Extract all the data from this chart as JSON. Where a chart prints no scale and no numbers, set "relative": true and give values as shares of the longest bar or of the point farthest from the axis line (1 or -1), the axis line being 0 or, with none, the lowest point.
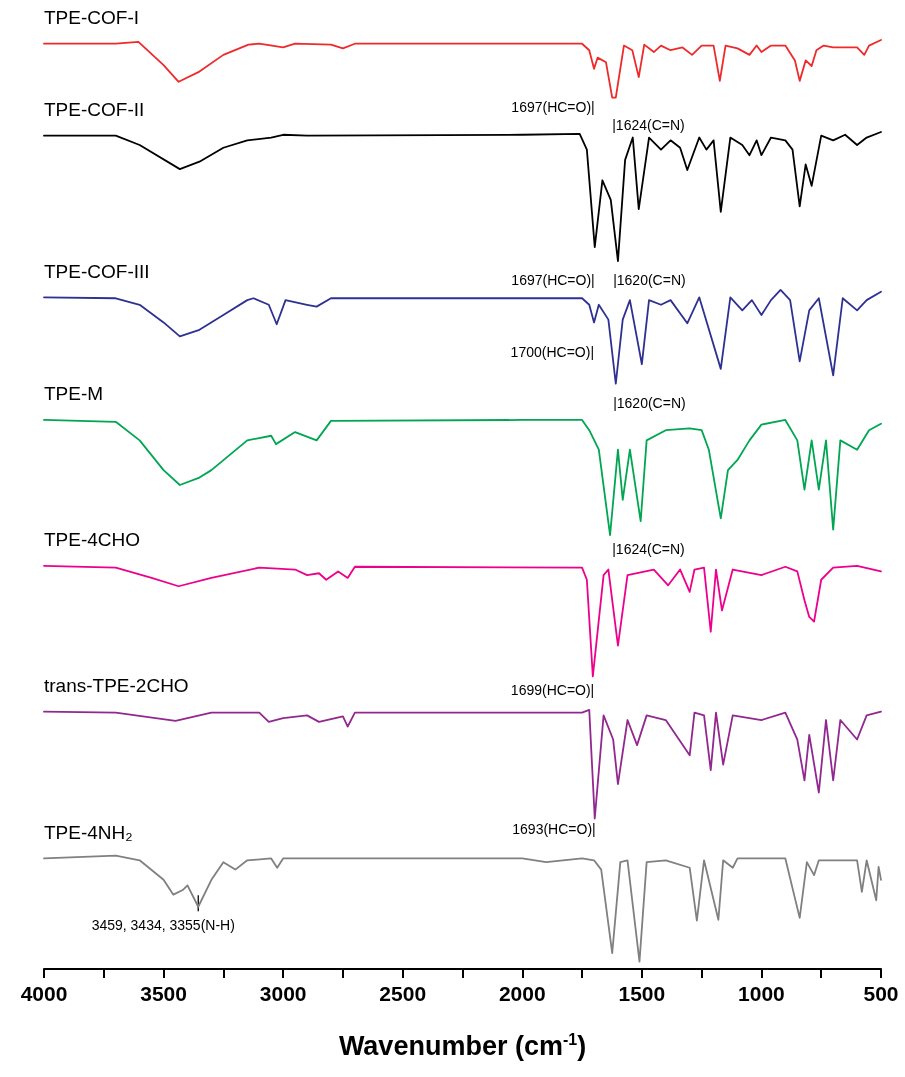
{
  "chart_data": {
    "type": "line",
    "relative": true,
    "tick_labels": "x",
    "marker": "none",
    "xlabel": "Wavenumber (cm$^{-1}$)",
    "xlim": [
      4000,
      500
    ],
    "xticks": [
      4000,
      {
        "value": 3750,
        "label": null
      },
      3500,
      {
        "value": 3250,
        "label": null
      },
      3000,
      {
        "value": 2750,
        "label": null
      },
      2500,
      {
        "value": 2250,
        "label": null
      },
      2000,
      {
        "value": 1750,
        "label": null
      },
      1500,
      {
        "value": 1250,
        "label": null
      },
      1000,
      {
        "value": 750,
        "label": null
      },
      500
    ],
    "annotations": [
      "1697(HC=O)|",
      "|1624(C=N)",
      "1697(HC=O)|",
      "|1620(C=N)",
      "1700(HC=O)|",
      "|1620(C=N)",
      "|1624(C=N)",
      "1699(HC=O)|",
      "1693(HC=O)|",
      "3459, 3434, 3355(N-H)"
    ],
    "series": [
      {
        "name": "TPE-COF-I",
        "color": "#ee2a2a",
        "x": [
          4000,
          3700,
          3605,
          3500,
          3437,
          3350,
          3250,
          3145,
          3100,
          3000,
          2950,
          2800,
          2750,
          2700,
          2000,
          1750,
          1720,
          1700,
          1685,
          1650,
          1624,
          1609,
          1575,
          1540,
          1513,
          1490,
          1450,
          1420,
          1380,
          1330,
          1290,
          1250,
          1200,
          1174,
          1150,
          1100,
          1050,
          1020,
          1000,
          960,
          900,
          860,
          840,
          815,
          790,
          770,
          740,
          700,
          600,
          570,
          550,
          500
        ],
        "values": [
          0.996,
          0.996,
          0.998,
          0.973,
          0.955,
          0.966,
          0.984,
          0.995,
          0.996,
          0.992,
          0.996,
          0.995,
          0.991,
          0.996,
          0.996,
          0.996,
          0.989,
          0.969,
          0.981,
          0.976,
          0.938,
          0.938,
          0.994,
          0.989,
          0.96,
          0.995,
          0.987,
          0.994,
          0.989,
          0.992,
          0.984,
          0.994,
          0.994,
          0.956,
          0.994,
          0.991,
          0.984,
          0.994,
          0.987,
          0.994,
          0.994,
          0.978,
          0.956,
          0.978,
          0.972,
          0.989,
          0.994,
          0.992,
          0.992,
          0.984,
          0.994,
          1.0
        ]
      },
      {
        "name": "TPE-COF-II",
        "color": "#000000",
        "x": [
          4000,
          3700,
          3600,
          3432,
          3350,
          3250,
          3150,
          3050,
          3000,
          2900,
          2000,
          1760,
          1730,
          1697,
          1665,
          1630,
          1600,
          1570,
          1538,
          1513,
          1470,
          1420,
          1380,
          1340,
          1310,
          1260,
          1230,
          1200,
          1170,
          1130,
          1080,
          1050,
          1020,
          1000,
          960,
          900,
          870,
          840,
          815,
          790,
          750,
          700,
          650,
          600,
          560,
          500
        ],
        "values": [
          0.897,
          0.897,
          0.887,
          0.861,
          0.869,
          0.884,
          0.892,
          0.895,
          0.898,
          0.897,
          0.898,
          0.899,
          0.882,
          0.777,
          0.849,
          0.828,
          0.762,
          0.871,
          0.895,
          0.818,
          0.895,
          0.882,
          0.892,
          0.884,
          0.86,
          0.895,
          0.882,
          0.892,
          0.815,
          0.895,
          0.887,
          0.876,
          0.892,
          0.876,
          0.895,
          0.892,
          0.882,
          0.821,
          0.866,
          0.843,
          0.897,
          0.892,
          0.898,
          0.887,
          0.895,
          0.901
        ]
      },
      {
        "name": "TPE-COF-III",
        "color": "#2e3192",
        "x": [
          4000,
          3700,
          3600,
          3500,
          3432,
          3350,
          3250,
          3150,
          3124,
          3060,
          3027,
          2990,
          2900,
          2860,
          2800,
          2000,
          1750,
          1720,
          1700,
          1680,
          1640,
          1609,
          1580,
          1550,
          1500,
          1470,
          1420,
          1380,
          1310,
          1260,
          1170,
          1130,
          1080,
          1040,
          1000,
          960,
          920,
          880,
          840,
          800,
          760,
          700,
          660,
          600,
          560,
          500
        ],
        "values": [
          0.723,
          0.722,
          0.715,
          0.696,
          0.681,
          0.688,
          0.704,
          0.72,
          0.722,
          0.715,
          0.694,
          0.72,
          0.715,
          0.713,
          0.722,
          0.722,
          0.722,
          0.715,
          0.696,
          0.715,
          0.699,
          0.63,
          0.699,
          0.72,
          0.651,
          0.72,
          0.715,
          0.72,
          0.695,
          0.723,
          0.646,
          0.723,
          0.709,
          0.72,
          0.704,
          0.72,
          0.731,
          0.72,
          0.654,
          0.709,
          0.722,
          0.639,
          0.722,
          0.709,
          0.72,
          0.729
        ]
      },
      {
        "name": "TPE-M",
        "color": "#00a651",
        "x": [
          4000,
          3700,
          3600,
          3500,
          3432,
          3350,
          3300,
          3150,
          3050,
          3030,
          2950,
          2860,
          2800,
          2000,
          1750,
          1720,
          1680,
          1633,
          1600,
          1580,
          1550,
          1505,
          1480,
          1400,
          1300,
          1250,
          1220,
          1170,
          1140,
          1100,
          1050,
          1000,
          900,
          850,
          820,
          790,
          760,
          730,
          700,
          670,
          600,
          550,
          500
        ],
        "values": [
          0.591,
          0.589,
          0.569,
          0.537,
          0.521,
          0.529,
          0.537,
          0.569,
          0.574,
          0.565,
          0.578,
          0.569,
          0.59,
          0.591,
          0.591,
          0.58,
          0.559,
          0.467,
          0.559,
          0.505,
          0.559,
          0.482,
          0.569,
          0.58,
          0.582,
          0.58,
          0.559,
          0.485,
          0.537,
          0.548,
          0.569,
          0.586,
          0.591,
          0.569,
          0.516,
          0.569,
          0.516,
          0.569,
          0.473,
          0.569,
          0.559,
          0.58,
          0.587
        ]
      },
      {
        "name": "TPE-4CHO",
        "color": "#ec008c",
        "x": [
          4000,
          3700,
          3550,
          3437,
          3300,
          3100,
          2950,
          2900,
          2850,
          2820,
          2770,
          2730,
          2700,
          1750,
          1730,
          1705,
          1660,
          1640,
          1600,
          1560,
          1450,
          1390,
          1340,
          1300,
          1280,
          1240,
          1212,
          1190,
          1165,
          1120,
          1000,
          900,
          850,
          820,
          800,
          780,
          750,
          700,
          600,
          500
        ],
        "values": [
          0.434,
          0.432,
          0.421,
          0.412,
          0.421,
          0.432,
          0.43,
          0.424,
          0.426,
          0.419,
          0.428,
          0.421,
          0.433,
          0.432,
          0.419,
          0.315,
          0.424,
          0.43,
          0.348,
          0.424,
          0.43,
          0.413,
          0.43,
          0.406,
          0.43,
          0.432,
          0.363,
          0.43,
          0.386,
          0.43,
          0.424,
          0.433,
          0.428,
          0.397,
          0.379,
          0.374,
          0.419,
          0.432,
          0.434,
          0.428
        ]
      },
      {
        "name": "trans-TPE-2CHO",
        "color": "#92278f",
        "x": [
          4000,
          3700,
          3450,
          3300,
          3100,
          3060,
          3000,
          2900,
          2850,
          2750,
          2730,
          2700,
          1750,
          1720,
          1697,
          1660,
          1620,
          1600,
          1560,
          1520,
          1480,
          1400,
          1300,
          1280,
          1240,
          1212,
          1190,
          1160,
          1120,
          1000,
          900,
          850,
          820,
          800,
          760,
          730,
          700,
          670,
          600,
          560,
          500
        ],
        "values": [
          0.277,
          0.276,
          0.267,
          0.276,
          0.276,
          0.266,
          0.27,
          0.273,
          0.266,
          0.272,
          0.261,
          0.276,
          0.276,
          0.279,
          0.162,
          0.273,
          0.247,
          0.199,
          0.268,
          0.241,
          0.273,
          0.268,
          0.23,
          0.276,
          0.273,
          0.214,
          0.276,
          0.22,
          0.273,
          0.268,
          0.276,
          0.247,
          0.203,
          0.252,
          0.19,
          0.268,
          0.203,
          0.268,
          0.247,
          0.273,
          0.277
        ]
      },
      {
        "name": "TPE-4NH₂",
        "color": "#808080",
        "x": [
          4000,
          3700,
          3600,
          3500,
          3459,
          3420,
          3400,
          3355,
          3300,
          3250,
          3200,
          3150,
          3050,
          3025,
          3000,
          2000,
          1900,
          1750,
          1700,
          1670,
          1624,
          1590,
          1560,
          1510,
          1480,
          1400,
          1300,
          1270,
          1240,
          1180,
          1160,
          1120,
          1100,
          900,
          840,
          810,
          780,
          760,
          600,
          580,
          560,
          520,
          510,
          500
        ],
        "values": [
          0.119,
          0.122,
          0.117,
          0.096,
          0.08,
          0.085,
          0.09,
          0.067,
          0.096,
          0.115,
          0.107,
          0.117,
          0.119,
          0.109,
          0.119,
          0.119,
          0.115,
          0.119,
          0.117,
          0.107,
          0.017,
          0.115,
          0.117,
          0.008,
          0.115,
          0.117,
          0.109,
          0.052,
          0.117,
          0.053,
          0.117,
          0.109,
          0.119,
          0.119,
          0.055,
          0.115,
          0.101,
          0.117,
          0.117,
          0.083,
          0.117,
          0.074,
          0.11,
          0.096
        ]
      }
    ]
  }
}
